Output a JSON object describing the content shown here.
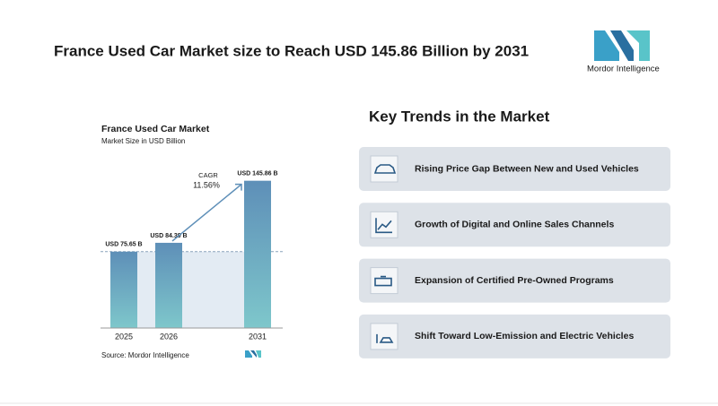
{
  "header": {
    "title": "France Used Car Market size to Reach USD 145.86 Billion by 2031",
    "logo": "Mordor Intelligence"
  },
  "chart_data": {
    "type": "bar",
    "title": "France Used Car Market",
    "subtitle": "Market Size in USD Billion",
    "categories": [
      "2025",
      "2026",
      "2031"
    ],
    "values": [
      75.65,
      84.39,
      145.86
    ],
    "value_labels": [
      "USD 75.65 B",
      "USD 84.39 B",
      "USD 145.86 B"
    ],
    "ylim": [
      0,
      150
    ],
    "annotation": {
      "label": "CAGR",
      "text": "11.56%"
    },
    "source": "Source: Mordor Intelligence"
  },
  "trends": {
    "title": "Key Trends in the Market",
    "items": [
      "Rising Price Gap Between New and Used Vehicles",
      "Growth of Digital and Online Sales Channels",
      "Expansion of Certified Pre-Owned Programs",
      "Shift Toward Low-Emission and Electric Vehicles"
    ]
  }
}
